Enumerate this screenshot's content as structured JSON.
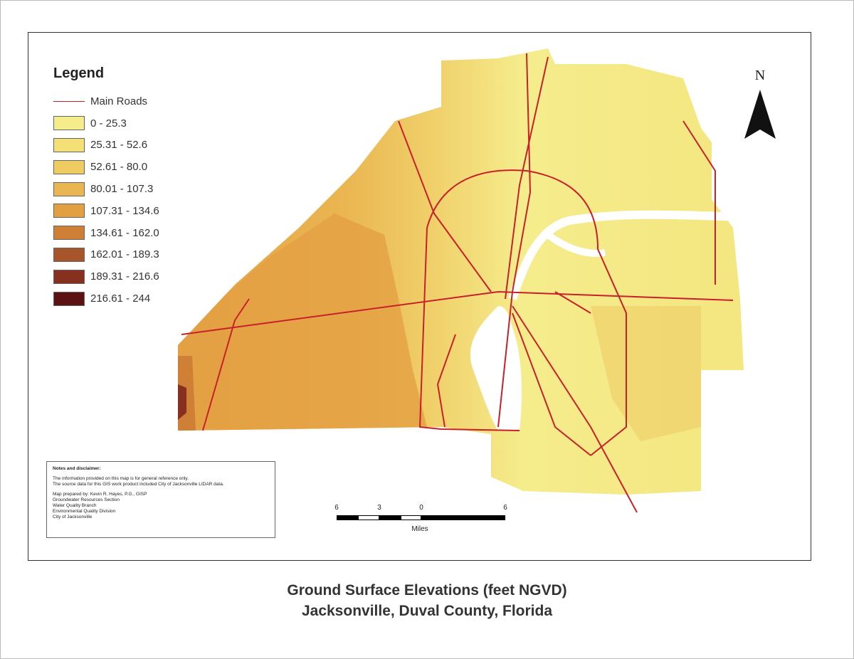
{
  "legend": {
    "title": "Legend",
    "road_label": "Main Roads",
    "road_color": "#c8202a",
    "classes": [
      {
        "label": "0 - 25.3",
        "color": "#f5ec8c"
      },
      {
        "label": "25.31 - 52.6",
        "color": "#f3e077"
      },
      {
        "label": "52.61 - 80.0",
        "color": "#efcc62"
      },
      {
        "label": "80.01 - 107.3",
        "color": "#eab652"
      },
      {
        "label": "107.31 - 134.6",
        "color": "#e3a043"
      },
      {
        "label": "134.61 - 162.0",
        "color": "#cf7f36"
      },
      {
        "label": "162.01 - 189.3",
        "color": "#a9552c"
      },
      {
        "label": "189.31 - 216.6",
        "color": "#87301f"
      },
      {
        "label": "216.61 - 244",
        "color": "#5c1212"
      }
    ]
  },
  "notes": {
    "heading": "Notes and disclaimer:",
    "lines": [
      "The information provided on this map is for general reference only.",
      "The source data for this GIS work product included City of Jacksonville LIDAR data."
    ],
    "prepared": [
      "Map prepared by: Kevin R. Hayes, P.G., GISP",
      "Groundwater Resources Section",
      "Water Quality Branch",
      "Environmental Quality Division",
      "City of Jacksonville"
    ]
  },
  "north_arrow": {
    "label": "N"
  },
  "scale_bar": {
    "labels": [
      "6",
      "3",
      "0",
      "6"
    ],
    "units": "Miles"
  },
  "caption": {
    "line1": "Ground Surface Elevations (feet NGVD)",
    "line2": "Jacksonville, Duval County, Florida"
  }
}
